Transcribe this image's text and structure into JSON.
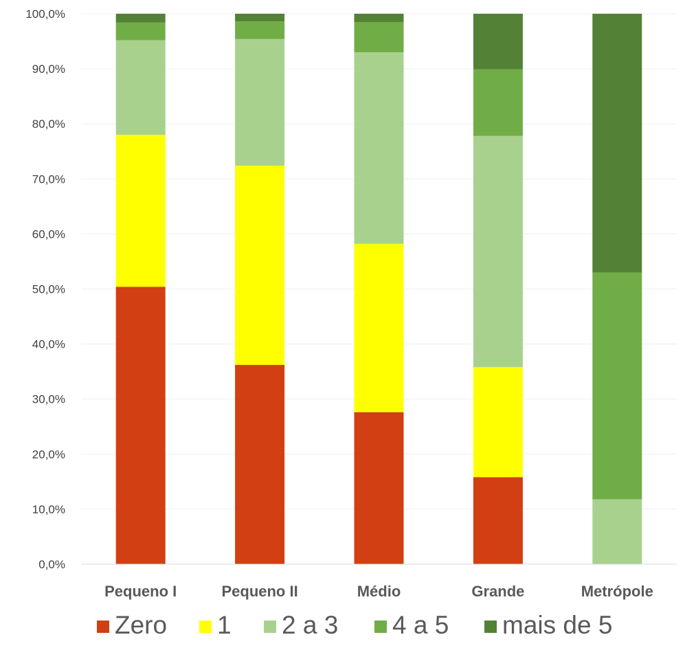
{
  "chart_data": {
    "type": "bar",
    "stacked": true,
    "categories": [
      "Pequeno I",
      "Pequeno II",
      "Médio",
      "Grande",
      "Metrópole"
    ],
    "series": [
      {
        "name": "Zero",
        "color": "#D13F12",
        "values": [
          50.4,
          36.2,
          27.6,
          15.8,
          0.0
        ]
      },
      {
        "name": "1",
        "color": "#FFFF00",
        "values": [
          27.6,
          36.2,
          30.6,
          20.0,
          0.0
        ]
      },
      {
        "name": "2 a 3",
        "color": "#A9D18E",
        "values": [
          17.2,
          23.0,
          34.8,
          42.0,
          11.8
        ]
      },
      {
        "name": "4 a 5",
        "color": "#70AD47",
        "values": [
          3.2,
          3.2,
          5.5,
          12.1,
          41.2
        ]
      },
      {
        "name": "mais de 5",
        "color": "#538135",
        "values": [
          1.6,
          1.4,
          1.5,
          10.1,
          47.0
        ]
      }
    ],
    "yticks": [
      "0,0%",
      "10,0%",
      "20,0%",
      "30,0%",
      "40,0%",
      "50,0%",
      "60,0%",
      "70,0%",
      "80,0%",
      "90,0%",
      "100,0%"
    ],
    "ylim": [
      0,
      100
    ],
    "grid": true,
    "legend_position": "bottom"
  }
}
